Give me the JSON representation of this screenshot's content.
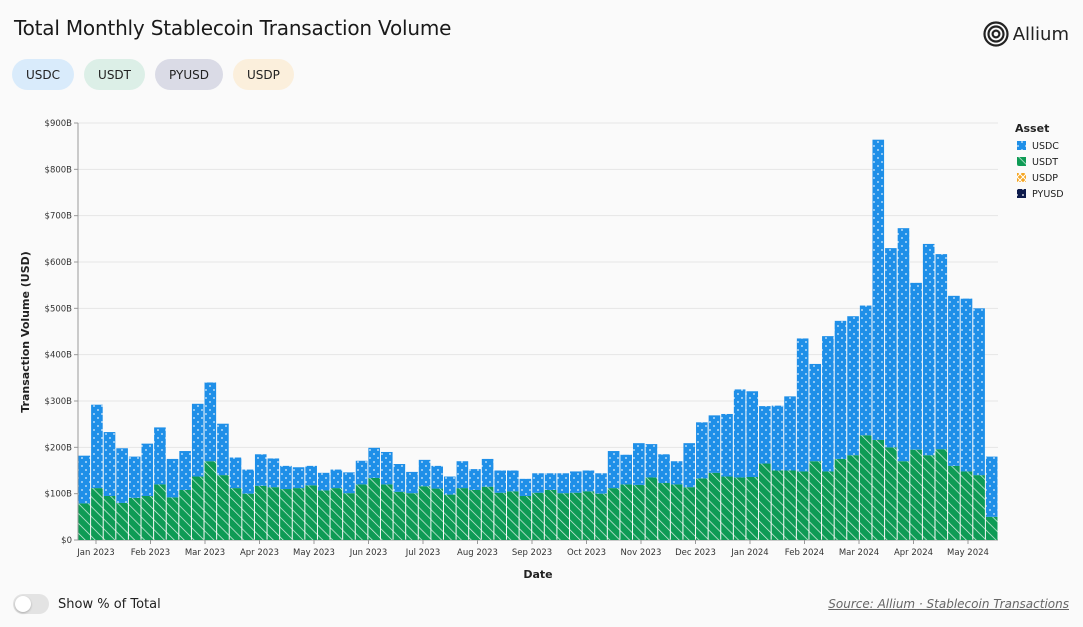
{
  "header": {
    "title": "Total Monthly Stablecoin Transaction Volume",
    "logo_text": "Allium"
  },
  "filters": [
    {
      "label": "USDC",
      "color": "#d9ebfb"
    },
    {
      "label": "USDT",
      "color": "#dcefe7"
    },
    {
      "label": "PYUSD",
      "color": "#dadbe6"
    },
    {
      "label": "USDP",
      "color": "#fbefdc"
    }
  ],
  "footer": {
    "toggle_label": "Show % of Total",
    "source_text": "Source: Allium · Stablecoin Transactions"
  },
  "chart_data": {
    "type": "bar",
    "stacked": true,
    "xlabel": "Date",
    "ylabel": "Transaction Volume (USD)",
    "ylim": [
      0,
      900
    ],
    "y_unit": "billion USD",
    "y_ticks": [
      "$0",
      "$100B",
      "$200B",
      "$300B",
      "$400B",
      "$500B",
      "$600B",
      "$700B",
      "$800B",
      "$900B"
    ],
    "x_tick_labels": [
      "Jan 2023",
      "Feb 2023",
      "Mar 2023",
      "Apr 2023",
      "May 2023",
      "Jun 2023",
      "Jul 2023",
      "Aug 2023",
      "Sep 2023",
      "Oct 2023",
      "Nov 2023",
      "Dec 2023",
      "Jan 2024",
      "Feb 2024",
      "Mar 2024",
      "Apr 2024",
      "May 2024"
    ],
    "legend_title": "Asset",
    "legend_position": "right",
    "grid": true,
    "bar_period": "weekly",
    "series": [
      {
        "name": "USDT",
        "color": "#0e9b55",
        "values": [
          79,
          112,
          95,
          80,
          91,
          95,
          120,
          92,
          108,
          137,
          170,
          140,
          112,
          100,
          117,
          114,
          110,
          112,
          118,
          107,
          112,
          101,
          120,
          134,
          120,
          104,
          101,
          116,
          111,
          98,
          112,
          108,
          115,
          102,
          105,
          95,
          102,
          108,
          101,
          102,
          105,
          100,
          112,
          120,
          119,
          135,
          123,
          120,
          114,
          133,
          145,
          137,
          135,
          136,
          165,
          150,
          150,
          148,
          170,
          148,
          175,
          183,
          226,
          216,
          200,
          170,
          195,
          183,
          196,
          160,
          148,
          140,
          50
        ]
      },
      {
        "name": "USDC",
        "color": "#1e8fe8",
        "values": [
          103,
          180,
          138,
          118,
          89,
          113,
          123,
          83,
          84,
          157,
          170,
          111,
          66,
          52,
          68,
          62,
          50,
          45,
          42,
          38,
          40,
          45,
          51,
          65,
          70,
          60,
          46,
          57,
          49,
          39,
          58,
          45,
          60,
          48,
          45,
          37,
          42,
          36,
          43,
          46,
          45,
          44,
          80,
          64,
          90,
          72,
          62,
          50,
          95,
          121,
          124,
          135,
          190,
          185,
          124,
          140,
          160,
          287,
          210,
          292,
          298,
          300,
          280,
          648,
          430,
          503,
          360,
          456,
          421,
          367,
          373,
          360,
          130
        ]
      },
      {
        "name": "USDP",
        "color": "#f5a623",
        "values": []
      },
      {
        "name": "PYUSD",
        "color": "#0d1b4c",
        "values": []
      }
    ]
  }
}
